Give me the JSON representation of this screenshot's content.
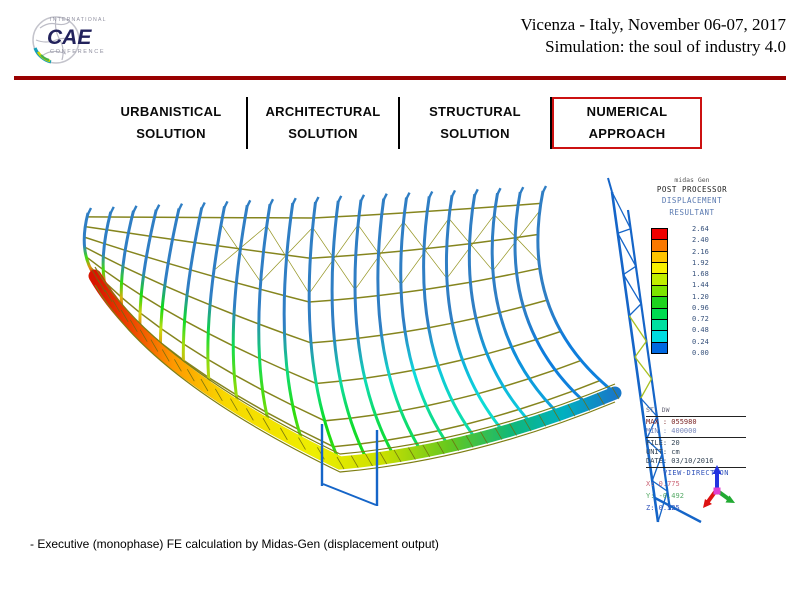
{
  "header": {
    "logo": {
      "top": "INTERNATIONAL",
      "main": "CAE",
      "bottom": "CONFERENCE"
    },
    "title_line1": "Vicenza - Italy, November 06-07, 2017",
    "title_line2": "Simulation: the soul of industry 4.0"
  },
  "accents": {
    "header_rule_color": "#990000",
    "active_tab_border_color": "#cc1111"
  },
  "nav": {
    "tabs": [
      {
        "line1": "URBANISTICAL",
        "line2": "SOLUTION",
        "active": false
      },
      {
        "line1": "ARCHITECTURAL",
        "line2": "SOLUTION",
        "active": false
      },
      {
        "line1": "STRUCTURAL",
        "line2": "SOLUTION",
        "active": false
      },
      {
        "line1": "NUMERICAL",
        "line2": "APPROACH",
        "active": true
      }
    ]
  },
  "viewer": {
    "legend": {
      "header_lines": [
        "midas Gen",
        "POST PROCESSOR",
        "DISPLACEMENT",
        "RESULTANT"
      ],
      "values": [
        "2.64",
        "2.40",
        "2.16",
        "1.92",
        "1.68",
        "1.44",
        "1.20",
        "0.96",
        "0.72",
        "0.48",
        "0.24",
        "0.00"
      ],
      "colors": [
        "#f00000",
        "#fa7800",
        "#ffc400",
        "#f8f000",
        "#c0ee00",
        "#7ce400",
        "#1ed41e",
        "#00dc50",
        "#00e0a0",
        "#00dce0",
        "#0068e0"
      ]
    },
    "info": {
      "case": "ST: DW",
      "max": "MAX : 055980",
      "min": "MIN : 400000",
      "file": "FILE: 20",
      "unit": "UNIT: cm",
      "date": "DATE: 03/10/2016",
      "view_direction_label": "VIEW-DIRECTION",
      "x": "X: 0.775",
      "y": "Y: -0.492",
      "z": "Z: 0.525"
    }
  },
  "caption": "- Executive (monophase) FE calculation by Midas-Gen (displacement output)"
}
